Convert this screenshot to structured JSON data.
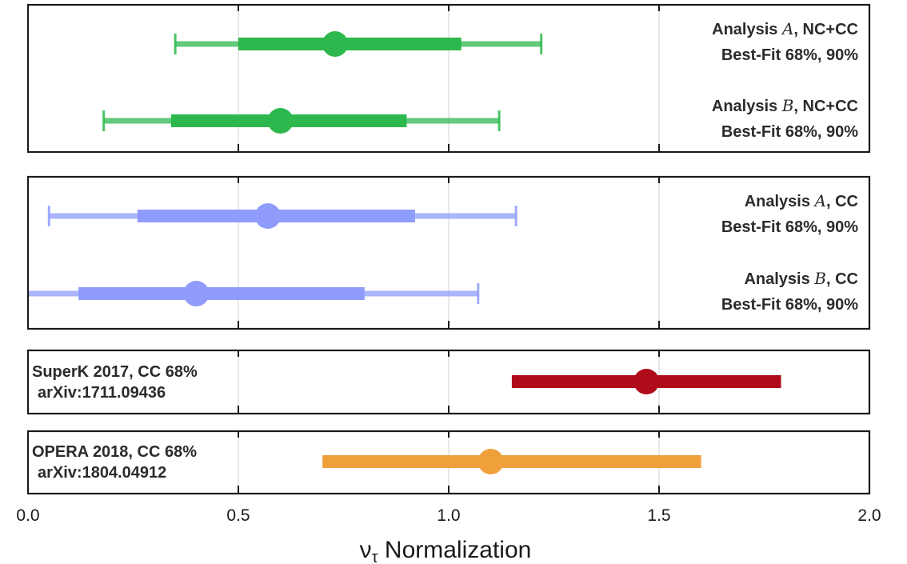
{
  "chart_data": {
    "type": "forest",
    "xlabel_main": "ν",
    "xlabel_sub": "τ",
    "xlabel_rest": " Normalization",
    "xlim": [
      0.0,
      2.0
    ],
    "xticks": [
      0.0,
      0.5,
      1.0,
      1.5,
      2.0
    ],
    "xtick_labels": [
      "0.0",
      "0.5",
      "1.0",
      "1.5",
      "2.0"
    ],
    "grid": true,
    "panels": [
      {
        "entries": [
          {
            "label_prefix": "Analysis ",
            "label_letter": "A",
            "label_suffix": ", NC+CC",
            "label_line2": "Best-Fit 68%, 90%",
            "best_fit": 0.73,
            "ci68": [
              0.5,
              1.03
            ],
            "ci90": [
              0.35,
              1.22
            ],
            "color": "#2db84d"
          },
          {
            "label_prefix": "Analysis ",
            "label_letter": "B",
            "label_suffix": ", NC+CC",
            "label_line2": "Best-Fit 68%, 90%",
            "best_fit": 0.6,
            "ci68": [
              0.34,
              0.9
            ],
            "ci90": [
              0.18,
              1.12
            ],
            "color": "#2db84d"
          }
        ]
      },
      {
        "entries": [
          {
            "label_prefix": "Analysis ",
            "label_letter": "A",
            "label_suffix": ", CC",
            "label_line2": "Best-Fit 68%, 90%",
            "best_fit": 0.57,
            "ci68": [
              0.26,
              0.92
            ],
            "ci90": [
              0.05,
              1.16
            ],
            "color": "#8f9cfb"
          },
          {
            "label_prefix": "Analysis ",
            "label_letter": "B",
            "label_suffix": ", CC",
            "label_line2": "Best-Fit 68%, 90%",
            "best_fit": 0.4,
            "ci68": [
              0.12,
              0.8
            ],
            "ci90": [
              0.0,
              1.07
            ],
            "color": "#8f9cfb"
          }
        ]
      },
      {
        "entries": [
          {
            "label_line1": "SuperK 2017, CC 68%",
            "label_line2": "arXiv:1711.09436",
            "best_fit": 1.47,
            "ci68": [
              1.15,
              1.79
            ],
            "color": "#b00b1a"
          }
        ]
      },
      {
        "entries": [
          {
            "label_line1": "OPERA 2018, CC 68%",
            "label_line2": "arXiv:1804.04912",
            "best_fit": 1.1,
            "ci68": [
              0.7,
              1.6
            ],
            "color": "#f0a03a"
          }
        ]
      }
    ]
  }
}
